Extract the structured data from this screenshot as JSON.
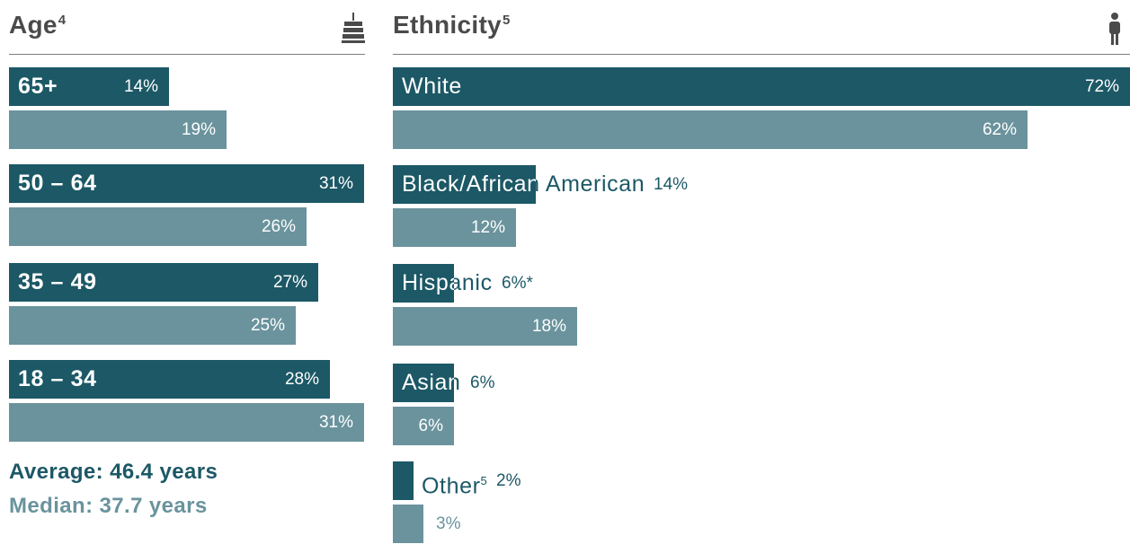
{
  "colors": {
    "primary": "#1c5866",
    "secondary": "#6a939d",
    "heading": "#4a4a4a",
    "rule": "#7f7f7f"
  },
  "icons": {
    "age": "cake-icon",
    "ethnicity": "person-icon"
  },
  "chart_data": [
    {
      "type": "bar",
      "orientation": "horizontal",
      "title": "Age",
      "title_note": "4",
      "categories": [
        "65+",
        "50 – 64",
        "35 – 49",
        "18 – 34"
      ],
      "series": [
        {
          "values": [
            14,
            31,
            27,
            28
          ],
          "labels": [
            "14%",
            "31%",
            "27%",
            "28%"
          ]
        },
        {
          "values": [
            19,
            26,
            25,
            31
          ],
          "labels": [
            "19%",
            "26%",
            "25%",
            "31%"
          ]
        }
      ],
      "stats": {
        "average": "Average: 46.4 years",
        "median": "Median: 37.7 years"
      }
    },
    {
      "type": "bar",
      "orientation": "horizontal",
      "title": "Ethnicity",
      "title_note": "5",
      "categories": [
        "White",
        "Black/African American",
        "Hispanic",
        "Asian",
        "Other"
      ],
      "category_notes": [
        "",
        "",
        "",
        "",
        "5"
      ],
      "series": [
        {
          "values": [
            72,
            14,
            6,
            6,
            2
          ],
          "labels": [
            "72%",
            "14%",
            "6%*",
            "6%",
            "2%"
          ]
        },
        {
          "values": [
            62,
            12,
            18,
            6,
            3
          ],
          "labels": [
            "62%",
            "12%",
            "18%",
            "6%",
            "3%"
          ]
        }
      ]
    }
  ]
}
